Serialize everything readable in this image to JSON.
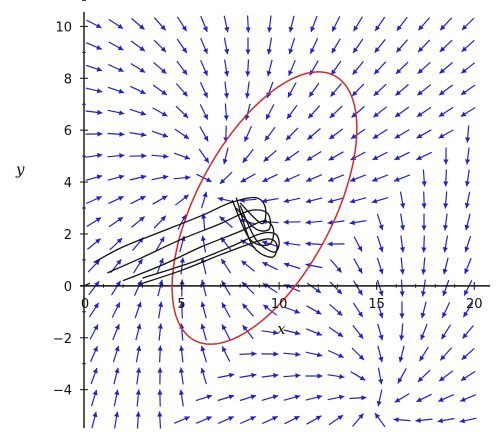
{
  "chart_data": {
    "type": "vector_field",
    "xlabel": "x",
    "ylabel": "y",
    "xlim": [
      0,
      20.5
    ],
    "ylim": [
      -5.4,
      10.4
    ],
    "x_ticks": [
      0,
      5,
      10,
      15,
      20
    ],
    "y_ticks": [
      -4,
      -2,
      0,
      2,
      4,
      6,
      8,
      10
    ],
    "x_tick_labels": [
      "0",
      "5",
      "10",
      "15",
      "20"
    ],
    "y_tick_labels": [
      "−4",
      "−2",
      "0",
      "2",
      "4",
      "6",
      "8",
      "10"
    ],
    "field_color": "#2222cc",
    "field_sinks": [
      {
        "x": 6.5,
        "y": 3.8
      },
      {
        "x": 15.0,
        "y": -4.6
      }
    ],
    "ellipse": {
      "color": "#d62728",
      "cx": 9.25,
      "cy": 3.0,
      "semi_major": 6.3,
      "semi_minor": 3.2,
      "angle_deg": 50
    },
    "trajectory_color": "#111111",
    "trajectories": [
      [
        [
          0.5,
          0.9
        ],
        [
          2.0,
          1.5
        ],
        [
          4.0,
          2.1
        ],
        [
          6.0,
          2.7
        ],
        [
          7.5,
          3.2
        ],
        [
          8.8,
          3.4
        ],
        [
          9.3,
          3.0
        ],
        [
          9.1,
          2.4
        ],
        [
          8.0,
          3.2
        ]
      ],
      [
        [
          1.2,
          0.5
        ],
        [
          3.0,
          1.1
        ],
        [
          5.0,
          1.8
        ],
        [
          7.0,
          2.4
        ],
        [
          8.5,
          2.9
        ],
        [
          9.4,
          2.8
        ],
        [
          9.5,
          2.2
        ],
        [
          8.8,
          2.2
        ],
        [
          7.8,
          3.0
        ]
      ],
      [
        [
          2.0,
          0.2
        ],
        [
          4.0,
          0.8
        ],
        [
          6.0,
          1.5
        ],
        [
          8.0,
          2.1
        ],
        [
          9.2,
          2.5
        ],
        [
          9.7,
          2.2
        ],
        [
          9.5,
          1.6
        ],
        [
          8.5,
          1.8
        ],
        [
          7.6,
          3.3
        ]
      ],
      [
        [
          2.8,
          0.05
        ],
        [
          5.0,
          0.6
        ],
        [
          7.0,
          1.2
        ],
        [
          8.8,
          1.7
        ],
        [
          9.6,
          1.8
        ],
        [
          9.9,
          1.5
        ],
        [
          9.6,
          1.1
        ],
        [
          8.6,
          1.6
        ],
        [
          7.8,
          3.4
        ]
      ],
      [
        [
          3.0,
          0.3
        ],
        [
          5.5,
          0.9
        ],
        [
          7.5,
          1.5
        ],
        [
          9.0,
          2.0
        ],
        [
          9.8,
          2.0
        ],
        [
          10.0,
          1.6
        ],
        [
          9.7,
          1.3
        ],
        [
          8.8,
          1.8
        ],
        [
          8.0,
          3.1
        ]
      ],
      [
        [
          0.0,
          0.0
        ],
        [
          0.3,
          0.1
        ]
      ]
    ]
  }
}
